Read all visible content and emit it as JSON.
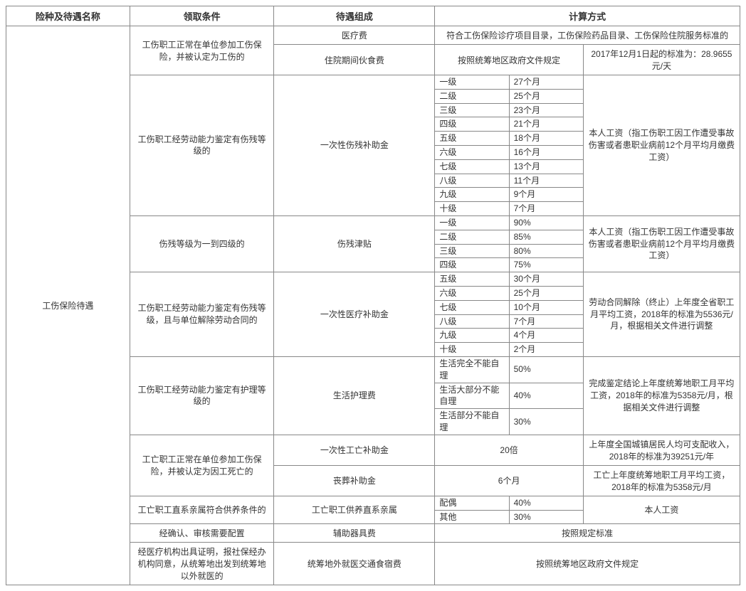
{
  "header": {
    "col1": "险种及待遇名称",
    "col2": "领取条件",
    "col3": "待遇组成",
    "col4": "计算方式"
  },
  "rowLabel": "工伤保险待遇",
  "cond1": "工伤职工正常在单位参加工伤保险，并被认定为工伤的",
  "comp1a": "医疗费",
  "calc1a": "符合工伤保险诊疗项目目录，工伤保险药品目录、工伤保险住院服务标准的",
  "comp1b": "住院期间伙食费",
  "calc1b1": "按照统筹地区政府文件规定",
  "calc1b2": "2017年12月1日起的标准为：28.9655元/天",
  "cond2": "工伤职工经劳动能力鉴定有伤残等级的",
  "comp2": "一次性伤残补助金",
  "calc2note": "本人工资（指工伤职工因工作遭受事故伤害或者患职业病前12个月平均月缴费工资）",
  "levels2": [
    {
      "l": "一级",
      "v": "27个月"
    },
    {
      "l": "二级",
      "v": "25个月"
    },
    {
      "l": "三级",
      "v": "23个月"
    },
    {
      "l": "四级",
      "v": "21个月"
    },
    {
      "l": "五级",
      "v": "18个月"
    },
    {
      "l": "六级",
      "v": "16个月"
    },
    {
      "l": "七级",
      "v": "13个月"
    },
    {
      "l": "八级",
      "v": "11个月"
    },
    {
      "l": "九级",
      "v": "9个月"
    },
    {
      "l": "十级",
      "v": "7个月"
    }
  ],
  "cond3": "伤残等级为一到四级的",
  "comp3": "伤残津贴",
  "calc3note": "本人工资（指工伤职工因工作遭受事故伤害或者患职业病前12个月平均月缴费工资）",
  "levels3": [
    {
      "l": "一级",
      "v": "90%"
    },
    {
      "l": "二级",
      "v": "85%"
    },
    {
      "l": "三级",
      "v": "80%"
    },
    {
      "l": "四级",
      "v": "75%"
    }
  ],
  "cond4": "工伤职工经劳动能力鉴定有伤残等级，且与单位解除劳动合同的",
  "comp4": "一次性医疗补助金",
  "calc4note": "劳动合同解除（终止）上年度全省职工月平均工资，2018年的标准为5536元/月，根据相关文件进行调整",
  "levels4": [
    {
      "l": "五级",
      "v": "30个月"
    },
    {
      "l": "六级",
      "v": "25个月"
    },
    {
      "l": "七级",
      "v": "10个月"
    },
    {
      "l": "八级",
      "v": "7个月"
    },
    {
      "l": "九级",
      "v": "4个月"
    },
    {
      "l": "十级",
      "v": "2个月"
    }
  ],
  "cond5": "工伤职工经劳动能力鉴定有护理等级的",
  "comp5": "生活护理费",
  "calc5note": "完成鉴定结论上年度统筹地职工月平均工资，2018年的标准为5358元/月，根据相关文件进行调整",
  "levels5": [
    {
      "l": "生活完全不能自理",
      "v": "50%"
    },
    {
      "l": "生活大部分不能自理",
      "v": "40%"
    },
    {
      "l": "生活部分不能自理",
      "v": "30%"
    }
  ],
  "cond6": "工亡职工正常在单位参加工伤保险，并被认定为因工死亡的",
  "comp6a": "一次性工亡补助金",
  "calc6a1": "20倍",
  "calc6a2": "上年度全国城镇居民人均可支配收入，2018年的标准为39251元/年",
  "comp6b": "丧葬补助金",
  "calc6b1": "6个月",
  "calc6b2": "工亡上年度统筹地职工月平均工资，2018年的标准为5358元/月",
  "cond7": "工亡职工直系亲属符合供养条件的",
  "comp7": "工亡职工供养直系亲属",
  "levels7": [
    {
      "l": "配偶",
      "v": "40%"
    },
    {
      "l": "其他",
      "v": "30%"
    }
  ],
  "calc7note": "本人工资",
  "cond8": "经确认、审核需要配置",
  "comp8": "辅助器具费",
  "calc8": "按照规定标准",
  "cond9": "经医疗机构出具证明，报社保经办机构同意，从统筹地出发到统筹地以外就医的",
  "comp9": "统筹地外就医交通食宿费",
  "calc9": "按照统筹地区政府文件规定"
}
